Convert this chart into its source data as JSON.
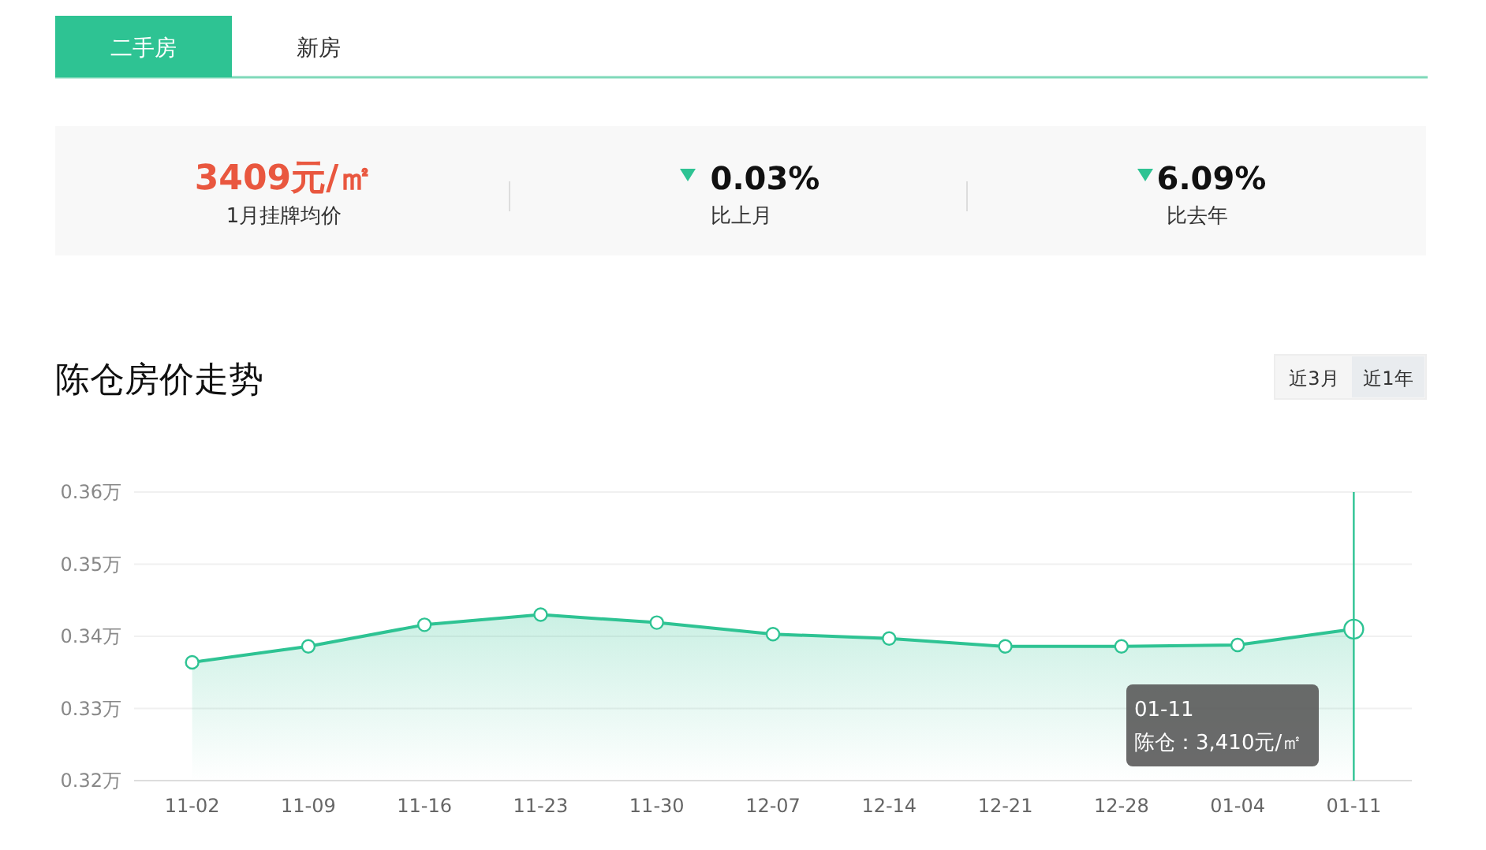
{
  "chart_data": {
    "type": "area",
    "title": "陈仓房价走势",
    "categories": [
      "11-02",
      "11-09",
      "11-16",
      "11-23",
      "11-30",
      "12-07",
      "12-14",
      "12-21",
      "12-28",
      "01-04",
      "01-11"
    ],
    "series": [
      {
        "color": "#2ec393",
        "values": [
          0.3364,
          0.3386,
          0.3416,
          0.343,
          0.3419,
          0.3403,
          0.3397,
          0.3386,
          0.3386,
          0.3388,
          0.341
        ]
      }
    ],
    "ylim": [
      0.32,
      0.36
    ],
    "yticks": [
      {
        "value": 0.32,
        "label": "0.32万"
      },
      {
        "value": 0.33,
        "label": "0.33万"
      },
      {
        "value": 0.34,
        "label": "0.34万"
      },
      {
        "value": 0.35,
        "label": "0.35万"
      },
      {
        "value": 0.36,
        "label": "0.36万"
      }
    ],
    "grid": "y",
    "marker": "circle",
    "ref_lines": [
      {
        "axis": "x",
        "value": "01-11",
        "color": "#2ec393"
      }
    ],
    "annotations": [
      "二手房",
      "新房",
      "3409元/㎡",
      "1月挂牌均价",
      "0.03%",
      "比上月",
      "6.09%",
      "比去年",
      "近3月",
      "近1年",
      "01-11\n陈仓：3,410元/㎡"
    ]
  }
}
